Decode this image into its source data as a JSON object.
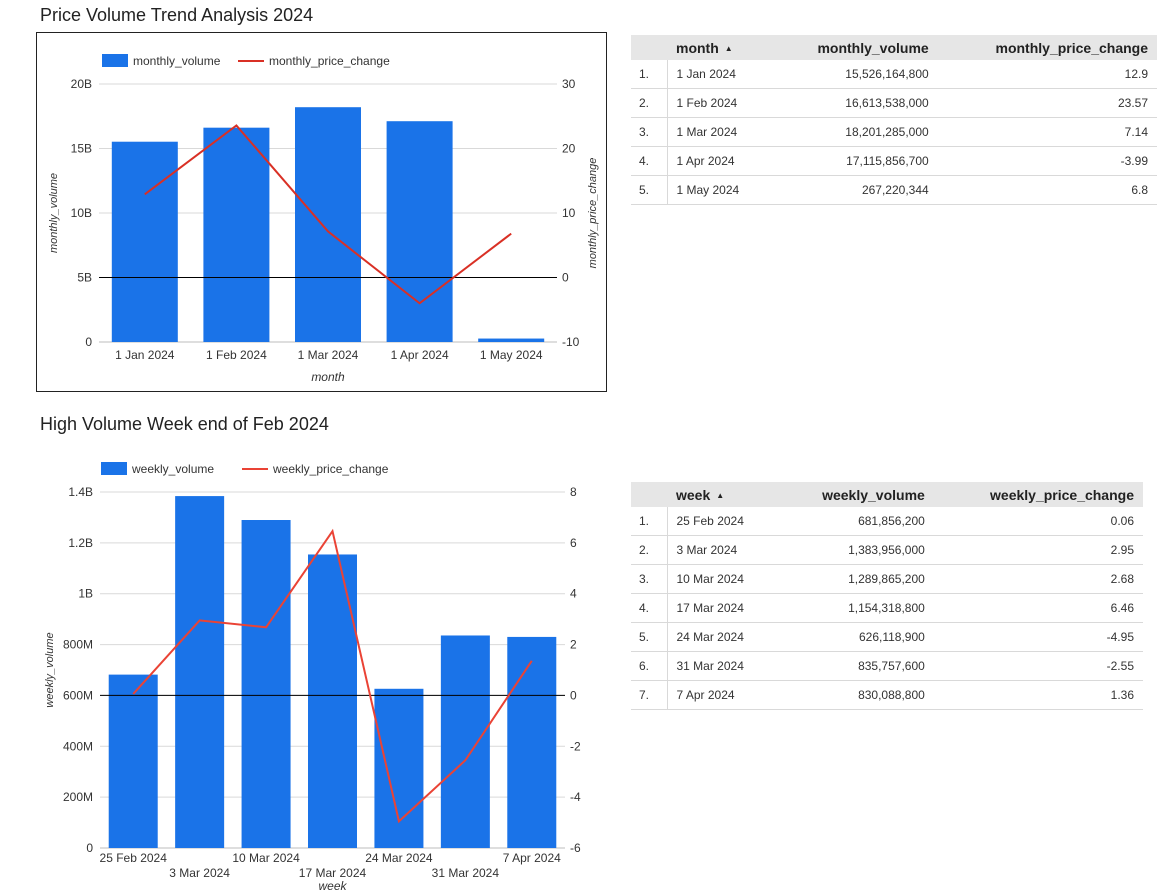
{
  "monthly_section": {
    "title": "Price Volume Trend Analysis 2024",
    "chart_data": {
      "type": "bar",
      "categories": [
        "1 Jan 2024",
        "1 Feb 2024",
        "1 Mar 2024",
        "1 Apr 2024",
        "1 May 2024"
      ],
      "series": [
        {
          "name": "monthly_volume",
          "type": "bar",
          "axis": "left",
          "color": "#1a73e8",
          "values": [
            15526164800,
            16613538000,
            18201285000,
            17115856700,
            267220344
          ]
        },
        {
          "name": "monthly_price_change",
          "type": "line",
          "axis": "right",
          "color": "#d93025",
          "values": [
            12.9,
            23.57,
            7.14,
            -3.99,
            6.8
          ]
        }
      ],
      "xlabel": "month",
      "ylabel": "monthly_volume",
      "y2label": "monthly_price_change",
      "ylim": [
        0,
        20000000000
      ],
      "y2lim": [
        -10,
        30
      ],
      "yticks": [
        "0",
        "5B",
        "10B",
        "15B",
        "20B"
      ],
      "y2ticks": [
        "-10",
        "0",
        "10",
        "20",
        "30"
      ],
      "legend": "top-left",
      "grid": true
    },
    "table": {
      "columns": [
        "month",
        "monthly_volume",
        "monthly_price_change"
      ],
      "rows": [
        [
          "1.",
          "1 Jan 2024",
          "15,526,164,800",
          "12.9"
        ],
        [
          "2.",
          "1 Feb 2024",
          "16,613,538,000",
          "23.57"
        ],
        [
          "3.",
          "1 Mar 2024",
          "18,201,285,000",
          "7.14"
        ],
        [
          "4.",
          "1 Apr 2024",
          "17,115,856,700",
          "-3.99"
        ],
        [
          "5.",
          "1 May 2024",
          "267,220,344",
          "6.8"
        ]
      ]
    }
  },
  "weekly_section": {
    "title": "High Volume Week end of Feb 2024",
    "chart_data": {
      "type": "bar",
      "categories": [
        "25 Feb 2024",
        "3 Mar 2024",
        "10 Mar 2024",
        "17 Mar 2024",
        "24 Mar 2024",
        "31 Mar 2024",
        "7 Apr 2024"
      ],
      "series": [
        {
          "name": "weekly_volume",
          "type": "bar",
          "axis": "left",
          "color": "#1a73e8",
          "values": [
            681856200,
            1383956000,
            1289865200,
            1154318800,
            626118900,
            835757600,
            830088800
          ]
        },
        {
          "name": "weekly_price_change",
          "type": "line",
          "axis": "right",
          "color": "#ea4335",
          "values": [
            0.06,
            2.95,
            2.68,
            6.46,
            -4.95,
            -2.55,
            1.36
          ]
        }
      ],
      "xlabel": "week",
      "ylabel": "weekly_volume",
      "ylim": [
        0,
        1400000000
      ],
      "y2lim": [
        -6,
        8
      ],
      "yticks": [
        "0",
        "200M",
        "400M",
        "600M",
        "800M",
        "1B",
        "1.2B",
        "1.4B"
      ],
      "y2ticks": [
        "-6",
        "-4",
        "-2",
        "0",
        "2",
        "4",
        "6",
        "8"
      ],
      "legend": "top-left",
      "grid": true
    },
    "table": {
      "columns": [
        "week",
        "weekly_volume",
        "weekly_price_change"
      ],
      "rows": [
        [
          "1.",
          "25 Feb 2024",
          "681,856,200",
          "0.06"
        ],
        [
          "2.",
          "3 Mar 2024",
          "1,383,956,000",
          "2.95"
        ],
        [
          "3.",
          "10 Mar 2024",
          "1,289,865,200",
          "2.68"
        ],
        [
          "4.",
          "17 Mar 2024",
          "1,154,318,800",
          "6.46"
        ],
        [
          "5.",
          "24 Mar 2024",
          "626,118,900",
          "-4.95"
        ],
        [
          "6.",
          "31 Mar 2024",
          "835,757,600",
          "-2.55"
        ],
        [
          "7.",
          "7 Apr 2024",
          "830,088,800",
          "1.36"
        ]
      ]
    }
  },
  "icons": {
    "sort": "sort-ascending-icon"
  }
}
